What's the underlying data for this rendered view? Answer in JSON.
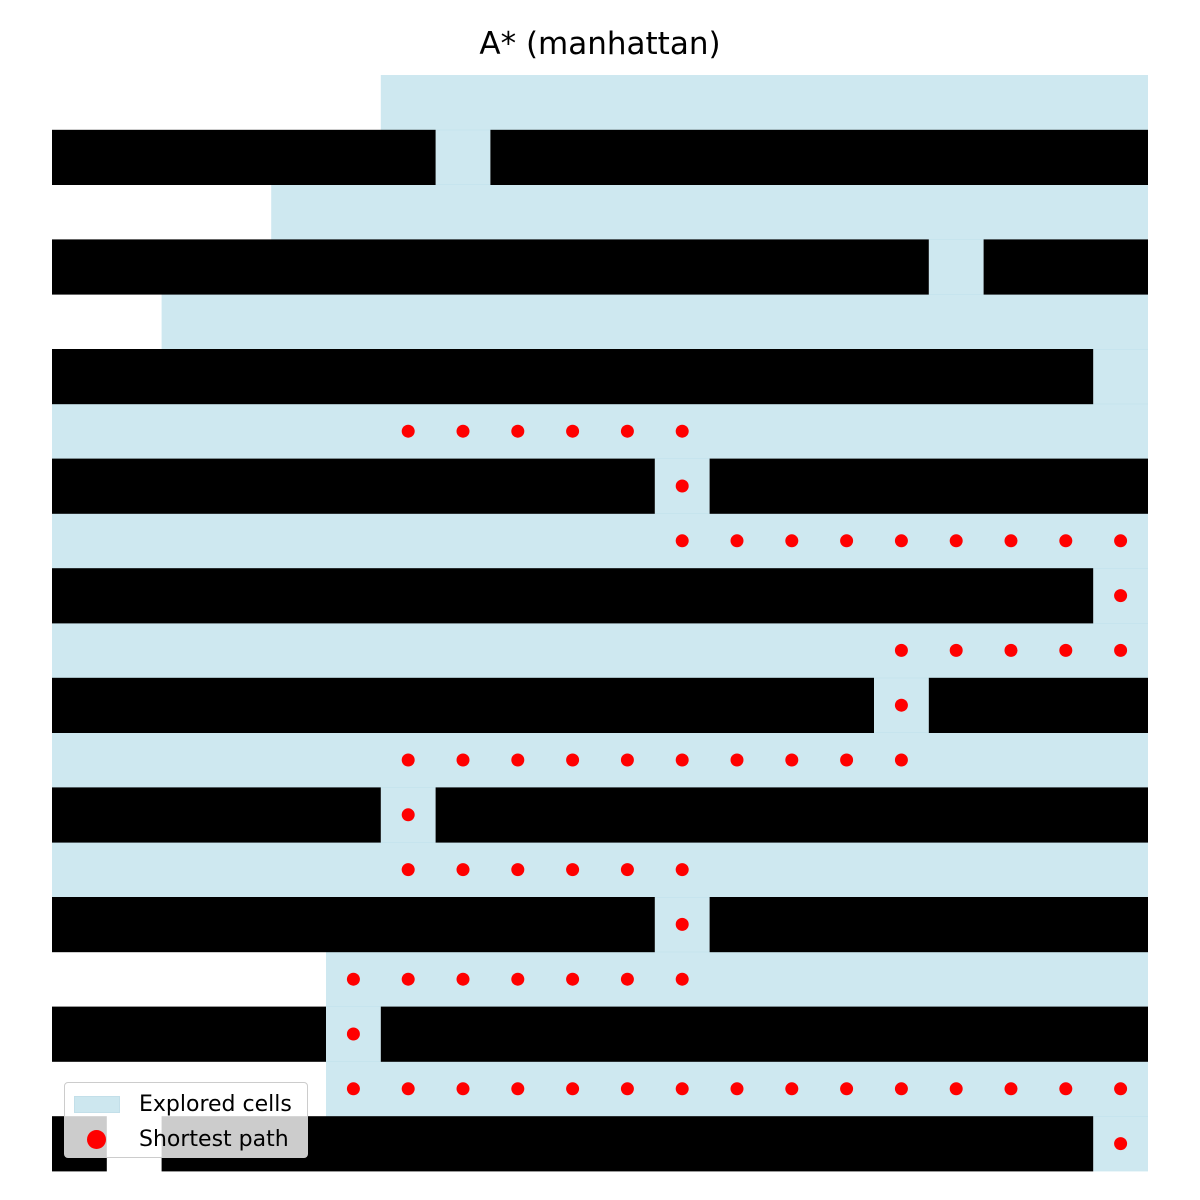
{
  "chart_data": {
    "type": "heatmap",
    "title": "A* (manhattan)",
    "grid": {
      "rows": 20,
      "cols": 20
    },
    "colors": {
      "wall": "#000000",
      "free": "#ffffff",
      "explored": "#add8e6",
      "path": "#ff0000"
    },
    "wall_rows": [
      {
        "row": 1,
        "gaps": [
          [
            7,
            8
          ]
        ]
      },
      {
        "row": 3,
        "gaps": [
          [
            16,
            17
          ]
        ]
      },
      {
        "row": 5,
        "gaps": [
          [
            19,
            20
          ]
        ]
      },
      {
        "row": 7,
        "gaps": [
          [
            11,
            12
          ]
        ]
      },
      {
        "row": 9,
        "gaps": [
          [
            19,
            20
          ]
        ]
      },
      {
        "row": 11,
        "gaps": [
          [
            15,
            16
          ]
        ]
      },
      {
        "row": 13,
        "gaps": [
          [
            6,
            7
          ]
        ]
      },
      {
        "row": 15,
        "gaps": [
          [
            11,
            12
          ]
        ]
      },
      {
        "row": 17,
        "gaps": [
          [
            5,
            6
          ]
        ]
      },
      {
        "row": 19,
        "gaps": [
          [
            1,
            2
          ],
          [
            19,
            20
          ]
        ]
      }
    ],
    "explored_rows": [
      {
        "row": 0,
        "from": 6,
        "to": 20
      },
      {
        "row": 1,
        "from": 7,
        "to": 8
      },
      {
        "row": 2,
        "from": 4,
        "to": 20
      },
      {
        "row": 3,
        "from": 16,
        "to": 17
      },
      {
        "row": 4,
        "from": 2,
        "to": 20
      },
      {
        "row": 5,
        "from": 19,
        "to": 20
      },
      {
        "row": 6,
        "from": 0,
        "to": 20
      },
      {
        "row": 7,
        "from": 11,
        "to": 12
      },
      {
        "row": 8,
        "from": 0,
        "to": 20
      },
      {
        "row": 9,
        "from": 19,
        "to": 20
      },
      {
        "row": 10,
        "from": 0,
        "to": 20
      },
      {
        "row": 11,
        "from": 15,
        "to": 16
      },
      {
        "row": 12,
        "from": 0,
        "to": 20
      },
      {
        "row": 13,
        "from": 6,
        "to": 7
      },
      {
        "row": 14,
        "from": 0,
        "to": 20
      },
      {
        "row": 15,
        "from": 11,
        "to": 12
      },
      {
        "row": 16,
        "from": 5,
        "to": 20
      },
      {
        "row": 17,
        "from": 5,
        "to": 6
      },
      {
        "row": 18,
        "from": 5,
        "to": 20
      },
      {
        "row": 19,
        "from": 19,
        "to": 20
      }
    ],
    "path": [
      [
        19,
        19
      ],
      [
        19,
        18
      ],
      [
        18,
        18
      ],
      [
        17,
        18
      ],
      [
        16,
        18
      ],
      [
        15,
        18
      ],
      [
        14,
        18
      ],
      [
        13,
        18
      ],
      [
        12,
        18
      ],
      [
        11,
        18
      ],
      [
        10,
        18
      ],
      [
        9,
        18
      ],
      [
        8,
        18
      ],
      [
        7,
        18
      ],
      [
        6,
        18
      ],
      [
        5,
        18
      ],
      [
        5,
        17
      ],
      [
        5,
        16
      ],
      [
        6,
        16
      ],
      [
        7,
        16
      ],
      [
        8,
        16
      ],
      [
        9,
        16
      ],
      [
        10,
        16
      ],
      [
        11,
        16
      ],
      [
        11,
        15
      ],
      [
        11,
        14
      ],
      [
        10,
        14
      ],
      [
        9,
        14
      ],
      [
        8,
        14
      ],
      [
        7,
        14
      ],
      [
        6,
        14
      ],
      [
        6,
        13
      ],
      [
        6,
        12
      ],
      [
        7,
        12
      ],
      [
        8,
        12
      ],
      [
        9,
        12
      ],
      [
        10,
        12
      ],
      [
        11,
        12
      ],
      [
        12,
        12
      ],
      [
        13,
        12
      ],
      [
        14,
        12
      ],
      [
        15,
        12
      ],
      [
        15,
        11
      ],
      [
        15,
        10
      ],
      [
        16,
        10
      ],
      [
        17,
        10
      ],
      [
        18,
        10
      ],
      [
        19,
        10
      ],
      [
        19,
        9
      ],
      [
        19,
        8
      ],
      [
        18,
        8
      ],
      [
        17,
        8
      ],
      [
        16,
        8
      ],
      [
        15,
        8
      ],
      [
        14,
        8
      ],
      [
        13,
        8
      ],
      [
        12,
        8
      ],
      [
        11,
        8
      ],
      [
        11,
        7
      ],
      [
        11,
        6
      ],
      [
        10,
        6
      ],
      [
        9,
        6
      ],
      [
        8,
        6
      ],
      [
        7,
        6
      ],
      [
        6,
        6
      ]
    ],
    "legend": {
      "position": "lower left",
      "entries": [
        {
          "label": "Explored cells",
          "type": "patch",
          "color": "#add8e6"
        },
        {
          "label": "Shortest path",
          "type": "marker",
          "color": "#ff0000"
        }
      ]
    }
  }
}
